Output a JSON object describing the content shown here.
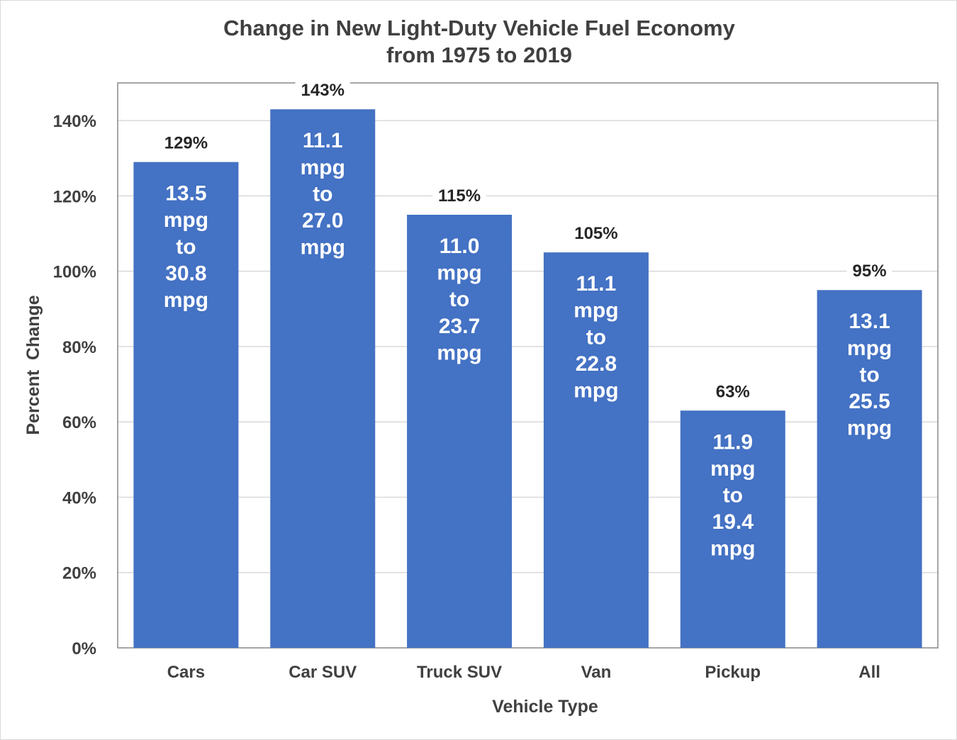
{
  "chart_data": {
    "type": "bar",
    "title_lines": [
      "Change in New Light-Duty Vehicle Fuel Economy",
      "from 1975 to 2019"
    ],
    "xlabel": "Vehicle Type",
    "ylabel": "Percent  Change",
    "ylim": [
      0,
      150
    ],
    "yticks": [
      0,
      20,
      40,
      60,
      80,
      100,
      120,
      140
    ],
    "ytick_labels": [
      "0%",
      "20%",
      "40%",
      "60%",
      "80%",
      "100%",
      "120%",
      "140%"
    ],
    "grid": true,
    "bar_color": "#4472C4",
    "categories": [
      "Cars",
      "Car SUV",
      "Truck SUV",
      "Van",
      "Pickup",
      "All"
    ],
    "values": [
      129,
      143,
      115,
      105,
      63,
      95
    ],
    "value_labels": [
      "129%",
      "143%",
      "115%",
      "105%",
      "63%",
      "95%"
    ],
    "bar_annotations": [
      [
        "13.5",
        "mpg",
        "to",
        "30.8",
        "mpg"
      ],
      [
        "11.1",
        "mpg",
        "to",
        "27.0",
        "mpg"
      ],
      [
        "11.0",
        "mpg",
        "to",
        "23.7",
        "mpg"
      ],
      [
        "11.1",
        "mpg",
        "to",
        "22.8",
        "mpg"
      ],
      [
        "11.9",
        "mpg",
        "to",
        "19.4",
        "mpg"
      ],
      [
        "13.1",
        "mpg",
        "to",
        "25.5",
        "mpg"
      ]
    ]
  }
}
